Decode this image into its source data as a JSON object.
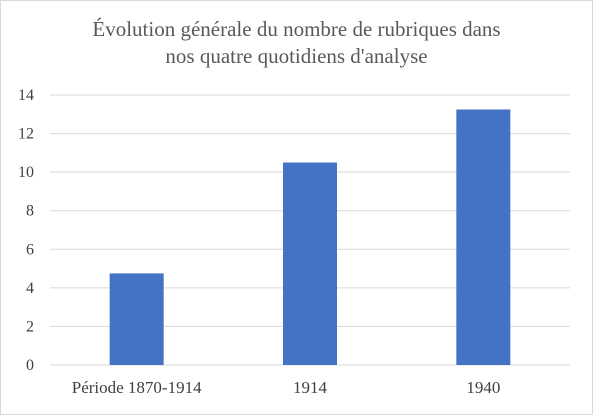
{
  "chart_data": {
    "type": "bar",
    "title_lines": [
      "Évolution générale du nombre de rubriques dans",
      "nos quatre quotidiens d'analyse"
    ],
    "categories": [
      "Période 1870-1914",
      "1914",
      "1940"
    ],
    "values": [
      4.75,
      10.5,
      13.25
    ],
    "ylim": [
      0,
      14
    ],
    "yticks": [
      0,
      2,
      4,
      6,
      8,
      10,
      12,
      14
    ],
    "grid": true,
    "legend": "none",
    "bar_color": "#4472c4",
    "grid_color": "#d9d9d9",
    "xlabel": "",
    "ylabel": ""
  }
}
